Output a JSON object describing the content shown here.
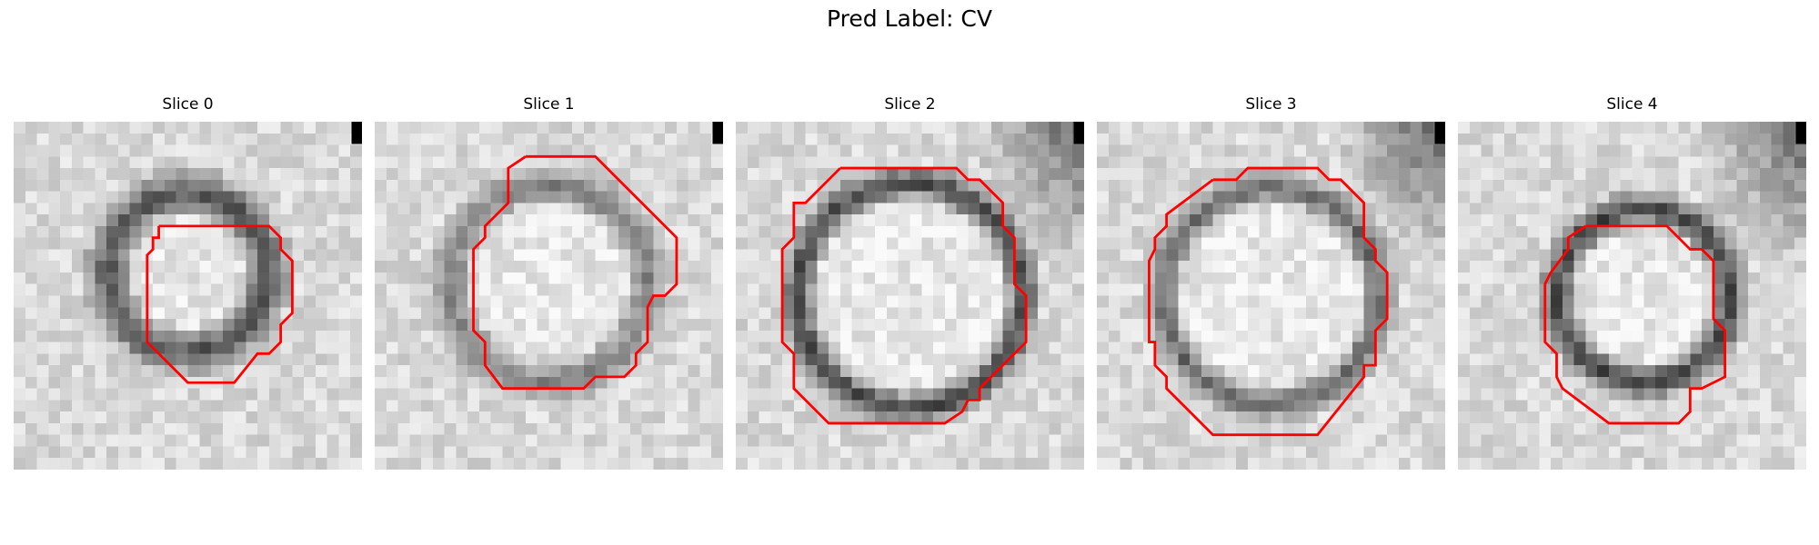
{
  "figure": {
    "title": "Pred Label: CV",
    "slices": [
      {
        "label": "Slice 0",
        "center": [
          12,
          10
        ],
        "outer_radius": 8.5,
        "inner_radius": 5.2,
        "darkness": 0.55
      },
      {
        "label": "Slice 1",
        "center": [
          12,
          11
        ],
        "outer_radius": 10.0,
        "inner_radius": 7.0,
        "darkness": 0.35
      },
      {
        "label": "Slice 2",
        "center": [
          12,
          12
        ],
        "outer_radius": 10.8,
        "inner_radius": 8.6,
        "darkness": 0.6
      },
      {
        "label": "Slice 3",
        "center": [
          12,
          12
        ],
        "outer_radius": 10.4,
        "inner_radius": 8.2,
        "darkness": 0.45
      },
      {
        "label": "Slice 4",
        "center": [
          13,
          12
        ],
        "outer_radius": 8.6,
        "inner_radius": 6.3,
        "darkness": 0.6
      }
    ],
    "colors": {
      "contour": "#ff0000",
      "background": "#ffffff"
    }
  }
}
